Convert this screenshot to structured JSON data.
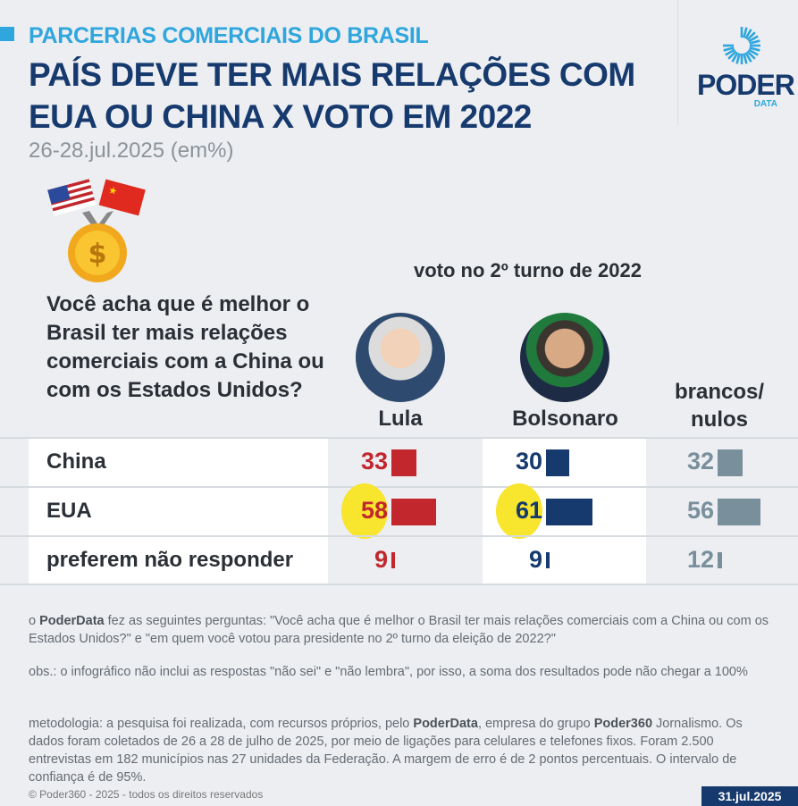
{
  "header": {
    "kicker": "PARCERIAS COMERCIAIS DO BRASIL",
    "title": "PAÍS DEVE TER MAIS RELAÇÕES COM EUA OU CHINA X VOTO EM 2022",
    "subtitle": "26-28.jul.2025 (em%)",
    "logo": "PODER",
    "logo_sub": "DATA"
  },
  "question": "Você acha que é melhor o Brasil ter mais relações comerciais com a China ou com os Estados Unidos?",
  "group_label": "voto no 2º turno de 2022",
  "chart_data": {
    "type": "table",
    "title": "País deve ter mais relações com EUA ou China x voto em 2022",
    "unit": "%",
    "columns": [
      {
        "name": "Lula",
        "color": "#c1272d"
      },
      {
        "name": "Bolsonaro",
        "color": "#173a6e"
      },
      {
        "name": "brancos/ nulos",
        "color": "#7a8f9c"
      }
    ],
    "rows": [
      {
        "label": "China",
        "values": [
          33,
          30,
          32
        ]
      },
      {
        "label": "EUA",
        "values": [
          58,
          61,
          56
        ],
        "highlight": [
          true,
          true,
          false
        ]
      },
      {
        "label": "preferem não responder",
        "values": [
          9,
          9,
          12
        ]
      }
    ]
  },
  "footer": {
    "p1_a": "o ",
    "p1_b": "PoderData",
    "p1_c": " fez as seguintes perguntas: \"Você acha que é melhor o Brasil ter mais relações comerciais com a China ou com os Estados Unidos?\" e \"em quem você votou para presidente no 2º turno da eleição de 2022?\"",
    "obs": "obs.: o infográfico não inclui as respostas \"não sei\" e \"não lembra\", por isso, a soma dos resultados pode não chegar a 100%",
    "m_a": "metodologia: a pesquisa foi realizada, com recursos próprios, pelo ",
    "m_b": "PoderData",
    "m_c": ", empresa do grupo ",
    "m_d": "Poder360",
    "m_e": " Jornalismo. Os dados foram coletados de 26 a 28 de julho de 2025, por meio de ligações para celulares e telefones fixos. Foram 2.500 entrevistas em 182 municípios nas 27 unidades da Federação. A margem de erro é de 2 pontos percentuais. O intervalo de confiança é de 95%.",
    "copyright": "© Poder360 - 2025 - todos os direitos reservados",
    "date": "31.jul.2025"
  }
}
